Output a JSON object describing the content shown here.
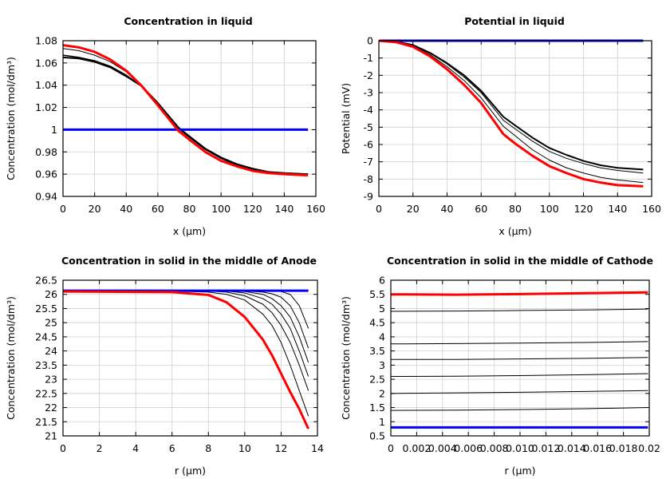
{
  "chart_data": [
    {
      "type": "line",
      "title": "Concentration in liquid",
      "xlabel": "x (µm)",
      "ylabel": "Concentration (mol/dm³)",
      "xlim": [
        0,
        160
      ],
      "ylim": [
        0.94,
        1.08
      ],
      "xticks": [
        "0",
        "20",
        "40",
        "60",
        "80",
        "100",
        "120",
        "140",
        "160"
      ],
      "yticks": [
        "0.94",
        "0.96",
        "0.98",
        "1",
        "1.02",
        "1.04",
        "1.06",
        "1.08"
      ],
      "grid": true,
      "x": [
        0,
        10,
        20,
        30,
        40,
        50,
        60,
        73,
        80,
        90,
        100,
        110,
        120,
        130,
        140,
        155
      ],
      "series": [
        {
          "color": "#000000",
          "width": 1,
          "values": [
            1.073,
            1.071,
            1.067,
            1.061,
            1.052,
            1.039,
            1.023,
            1.001,
            0.993,
            0.982,
            0.974,
            0.968,
            0.964,
            0.962,
            0.961,
            0.96
          ]
        },
        {
          "color": "#000000",
          "width": 1.5,
          "values": [
            1.067,
            1.065,
            1.062,
            1.057,
            1.049,
            1.039,
            1.024,
            1.002,
            0.994,
            0.983,
            0.975,
            0.969,
            0.965,
            0.962,
            0.961,
            0.96
          ]
        },
        {
          "color": "#000000",
          "width": 2,
          "values": [
            1.065,
            1.064,
            1.061,
            1.056,
            1.048,
            1.039,
            1.024,
            1.002,
            0.994,
            0.983,
            0.975,
            0.969,
            0.965,
            0.962,
            0.961,
            0.96
          ]
        },
        {
          "color": "#0000ff",
          "width": 3,
          "values": [
            1,
            1,
            1,
            1,
            1,
            1,
            1,
            1,
            1,
            1,
            1,
            1,
            1,
            1,
            1,
            1
          ]
        },
        {
          "color": "#ff0000",
          "width": 3,
          "values": [
            1.076,
            1.074,
            1.07,
            1.063,
            1.053,
            1.039,
            1.022,
            0.999,
            0.991,
            0.98,
            0.972,
            0.967,
            0.963,
            0.961,
            0.96,
            0.959
          ]
        }
      ]
    },
    {
      "type": "line",
      "title": "Potential in liquid",
      "xlabel": "x (µm)",
      "ylabel": "Potential (mV)",
      "xlim": [
        0,
        160
      ],
      "ylim": [
        -9,
        0
      ],
      "xticks": [
        "0",
        "20",
        "40",
        "60",
        "80",
        "100",
        "120",
        "140",
        "160"
      ],
      "yticks": [
        "-9",
        "-8",
        "-7",
        "-6",
        "-5",
        "-4",
        "-3",
        "-2",
        "-1",
        "0"
      ],
      "grid": true,
      "x": [
        0,
        10,
        20,
        30,
        40,
        50,
        60,
        73,
        80,
        90,
        100,
        110,
        120,
        130,
        140,
        155
      ],
      "series": [
        {
          "color": "#000000",
          "width": 2,
          "values": [
            0,
            -0.05,
            -0.25,
            -0.7,
            -1.3,
            -2.0,
            -2.9,
            -4.4,
            -4.9,
            -5.6,
            -6.2,
            -6.6,
            -6.95,
            -7.2,
            -7.35,
            -7.45
          ]
        },
        {
          "color": "#000000",
          "width": 1,
          "values": [
            0,
            -0.05,
            -0.27,
            -0.72,
            -1.35,
            -2.1,
            -3.0,
            -4.6,
            -5.1,
            -5.8,
            -6.4,
            -6.8,
            -7.1,
            -7.35,
            -7.5,
            -7.65
          ]
        },
        {
          "color": "#000000",
          "width": 1,
          "values": [
            0,
            -0.05,
            -0.3,
            -0.8,
            -1.5,
            -2.3,
            -3.3,
            -4.95,
            -5.5,
            -6.3,
            -6.9,
            -7.35,
            -7.65,
            -7.9,
            -8.05,
            -8.2
          ]
        },
        {
          "color": "#0000ff",
          "width": 3,
          "values": [
            0,
            0,
            0,
            0,
            0,
            0,
            0,
            0,
            0,
            0,
            0,
            0,
            0,
            0,
            0,
            0
          ]
        },
        {
          "color": "#ff0000",
          "width": 3,
          "values": [
            0,
            -0.08,
            -0.35,
            -0.9,
            -1.65,
            -2.55,
            -3.6,
            -5.4,
            -5.95,
            -6.65,
            -7.25,
            -7.65,
            -8.0,
            -8.2,
            -8.35,
            -8.42
          ]
        }
      ]
    },
    {
      "type": "line",
      "title": "Concentration in solid in the middle of Anode",
      "xlabel": "r (µm)",
      "ylabel": "Concentration (mol/dm³)",
      "xlim": [
        0,
        14
      ],
      "ylim": [
        21,
        26.5
      ],
      "xticks": [
        "0",
        "2",
        "4",
        "6",
        "8",
        "10",
        "12",
        "14"
      ],
      "yticks": [
        "21",
        "21.5",
        "22",
        "22.5",
        "23",
        "23.5",
        "24",
        "24.5",
        "25",
        "25.5",
        "26",
        "26.5"
      ],
      "grid": true,
      "x": [
        0,
        6,
        8,
        9,
        10,
        11,
        11.5,
        12,
        12.5,
        13,
        13.5
      ],
      "series": [
        {
          "color": "#000000",
          "width": 1,
          "values": [
            26.13,
            26.13,
            26.13,
            26.13,
            26.13,
            26.13,
            26.12,
            26.1,
            26.0,
            25.6,
            24.8
          ]
        },
        {
          "color": "#000000",
          "width": 1,
          "values": [
            26.13,
            26.13,
            26.13,
            26.13,
            26.12,
            26.08,
            26.02,
            25.9,
            25.6,
            25.0,
            24.1
          ]
        },
        {
          "color": "#000000",
          "width": 1,
          "values": [
            26.13,
            26.13,
            26.13,
            26.13,
            26.1,
            26.0,
            25.85,
            25.6,
            25.2,
            24.5,
            23.6
          ]
        },
        {
          "color": "#000000",
          "width": 1,
          "values": [
            26.13,
            26.13,
            26.13,
            26.12,
            26.05,
            25.85,
            25.65,
            25.3,
            24.8,
            24.0,
            23.1
          ]
        },
        {
          "color": "#000000",
          "width": 1,
          "values": [
            26.13,
            26.13,
            26.12,
            26.08,
            25.95,
            25.65,
            25.35,
            24.9,
            24.3,
            23.5,
            22.6
          ]
        },
        {
          "color": "#000000",
          "width": 1,
          "values": [
            26.12,
            26.12,
            26.08,
            26.0,
            25.8,
            25.3,
            24.9,
            24.3,
            23.5,
            22.6,
            21.7
          ]
        },
        {
          "color": "#0000ff",
          "width": 3,
          "values": [
            26.13,
            26.13,
            26.13,
            26.13,
            26.13,
            26.13,
            26.13,
            26.13,
            26.13,
            26.13,
            26.13
          ]
        },
        {
          "color": "#ff0000",
          "width": 3,
          "values": [
            26.1,
            26.08,
            25.98,
            25.72,
            25.2,
            24.4,
            23.85,
            23.2,
            22.55,
            21.95,
            21.25
          ]
        }
      ]
    },
    {
      "type": "line",
      "title": "Concentration in solid in the middle of Cathode",
      "xlabel": "r (µm)",
      "ylabel": "Concentration (mol/dm³)",
      "xlim": [
        0,
        0.02
      ],
      "ylim": [
        0.5,
        6
      ],
      "xticks": [
        "0",
        "0.002",
        "0.004",
        "0.006",
        "0.008",
        "0.010",
        "0.012",
        "0.014",
        "0.016",
        "0.018",
        "0.02"
      ],
      "yticks": [
        "0.5",
        "1",
        "1.5",
        "2",
        "2.5",
        "3",
        "3.5",
        "4",
        "4.5",
        "5",
        "5.5",
        "6"
      ],
      "grid": true,
      "x": [
        0,
        0.005,
        0.01,
        0.015,
        0.0199
      ],
      "series": [
        {
          "color": "#000000",
          "width": 1,
          "values": [
            4.9,
            4.91,
            4.93,
            4.95,
            4.98
          ]
        },
        {
          "color": "#000000",
          "width": 1,
          "values": [
            3.75,
            3.76,
            3.78,
            3.8,
            3.83
          ]
        },
        {
          "color": "#000000",
          "width": 1,
          "values": [
            3.2,
            3.2,
            3.22,
            3.24,
            3.27
          ]
        },
        {
          "color": "#000000",
          "width": 1,
          "values": [
            2.6,
            2.61,
            2.63,
            2.66,
            2.7
          ]
        },
        {
          "color": "#000000",
          "width": 1,
          "values": [
            2.0,
            2.02,
            2.04,
            2.07,
            2.1
          ]
        },
        {
          "color": "#000000",
          "width": 1,
          "values": [
            1.4,
            1.41,
            1.43,
            1.46,
            1.5
          ]
        },
        {
          "color": "#0000ff",
          "width": 3,
          "values": [
            0.8,
            0.8,
            0.8,
            0.8,
            0.8
          ]
        },
        {
          "color": "#ff0000",
          "width": 3,
          "values": [
            5.5,
            5.49,
            5.51,
            5.54,
            5.57
          ]
        }
      ]
    }
  ]
}
